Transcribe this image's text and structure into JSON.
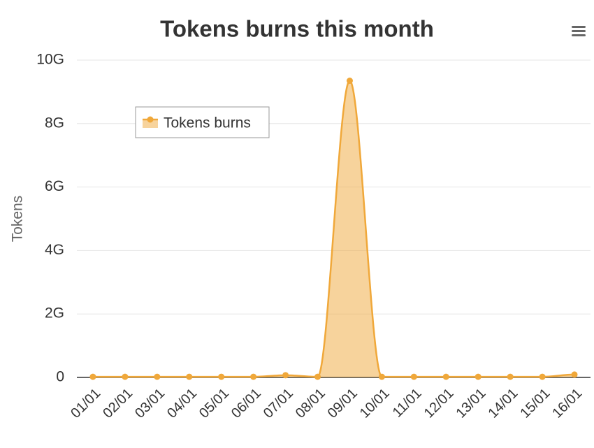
{
  "chart_data": {
    "type": "areaspline",
    "title": "Tokens burns this month",
    "y_axis_title": "Tokens",
    "categories": [
      "01/01",
      "02/01",
      "03/01",
      "04/01",
      "05/01",
      "06/01",
      "07/01",
      "08/01",
      "09/01",
      "10/01",
      "11/01",
      "12/01",
      "13/01",
      "14/01",
      "15/01",
      "16/01"
    ],
    "series": [
      {
        "name": "Tokens burns",
        "color": "#f0a83a",
        "values": [
          20000000,
          20000000,
          20000000,
          20000000,
          20000000,
          20000000,
          70000000,
          20000000,
          9350000000,
          20000000,
          20000000,
          20000000,
          20000000,
          20000000,
          20000000,
          90000000
        ]
      }
    ],
    "ylim": [
      0,
      10000000000
    ],
    "yticks": [
      {
        "value": 0,
        "label": "0"
      },
      {
        "value": 2000000000,
        "label": "2G"
      },
      {
        "value": 4000000000,
        "label": "4G"
      },
      {
        "value": 6000000000,
        "label": "6G"
      },
      {
        "value": 8000000000,
        "label": "8G"
      },
      {
        "value": 10000000000,
        "label": "10G"
      }
    ],
    "grid": true
  }
}
